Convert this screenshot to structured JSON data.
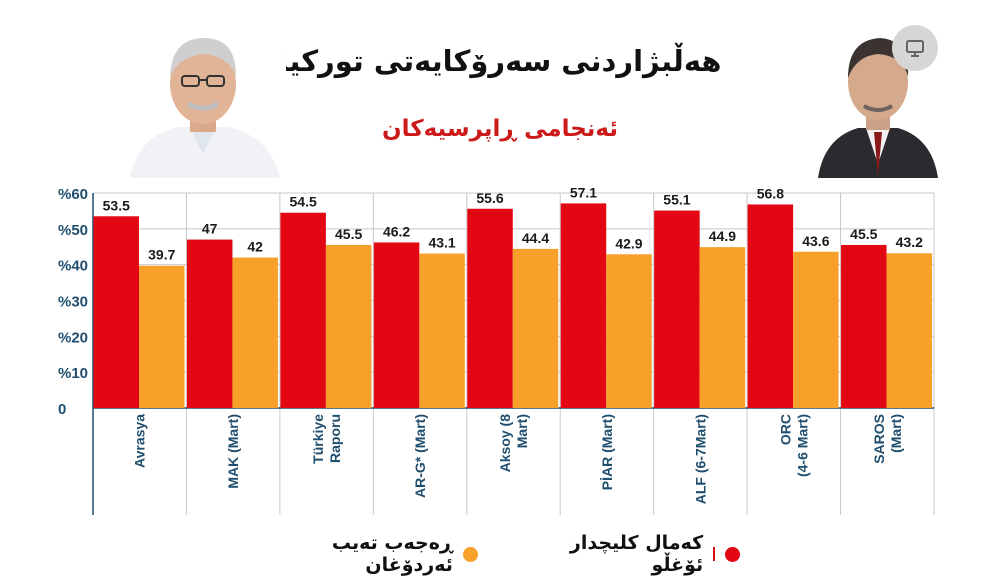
{
  "header": {
    "title": "هەڵبژاردنی سەرۆکایەتی تورکیا",
    "subtitle": "ئەنجامی ڕاپرسیەکان"
  },
  "legend": {
    "series_a": "ڕەجەب تەیب ئەردۆغان",
    "series_b": "کەمال کلیچدار ئۆغڵو"
  },
  "colors": {
    "red": "#e30613",
    "orange": "#f7a12b",
    "axis_text": "#1f4e6e",
    "grid": "#c8c8c8"
  },
  "icons": {
    "badge": "presentation-icon"
  },
  "chart_data": {
    "type": "bar",
    "title": "هەڵبژاردنی سەرۆکایەتی تورکیا",
    "subtitle": "ئەنجامی ڕاپرسیەکان",
    "categories": [
      "Avrasya",
      "MAK (Mart)",
      "Türkiye Raporu",
      "AR-G* (Mart)",
      "Aksoy (8 Mart)",
      "PİAR (Mart)",
      "ALF (6-7Mart)",
      "ORC (4-6 Mart)",
      "SAROS (Mart)"
    ],
    "category_lines": [
      [
        "Avrasya"
      ],
      [
        "MAK (Mart)"
      ],
      [
        "Türkiye",
        "Raporu"
      ],
      [
        "AR-G* (Mart)"
      ],
      [
        "Aksoy (8",
        "Mart)"
      ],
      [
        "PİAR (Mart)"
      ],
      [
        "ALF (6-7Mart)"
      ],
      [
        "ORC",
        "(4-6 Mart)"
      ],
      [
        "SAROS",
        "(Mart)"
      ]
    ],
    "series": [
      {
        "name": "ڕەجەب تەیب ئەردۆغان",
        "color": "#e30613",
        "values": [
          53.5,
          47,
          54.5,
          46.2,
          55.6,
          57.1,
          55.1,
          56.8,
          45.5
        ]
      },
      {
        "name": "کەمال کلیچدار ئۆغڵو",
        "color": "#f7a12b",
        "values": [
          39.7,
          42,
          45.5,
          43.1,
          44.4,
          42.9,
          44.9,
          43.6,
          43.2
        ]
      }
    ],
    "yticks": [
      "0",
      "%10",
      "%20",
      "%30",
      "%40",
      "%50",
      "%60"
    ],
    "ylim": [
      0,
      60
    ],
    "grid": true,
    "legend_position": "bottom"
  }
}
